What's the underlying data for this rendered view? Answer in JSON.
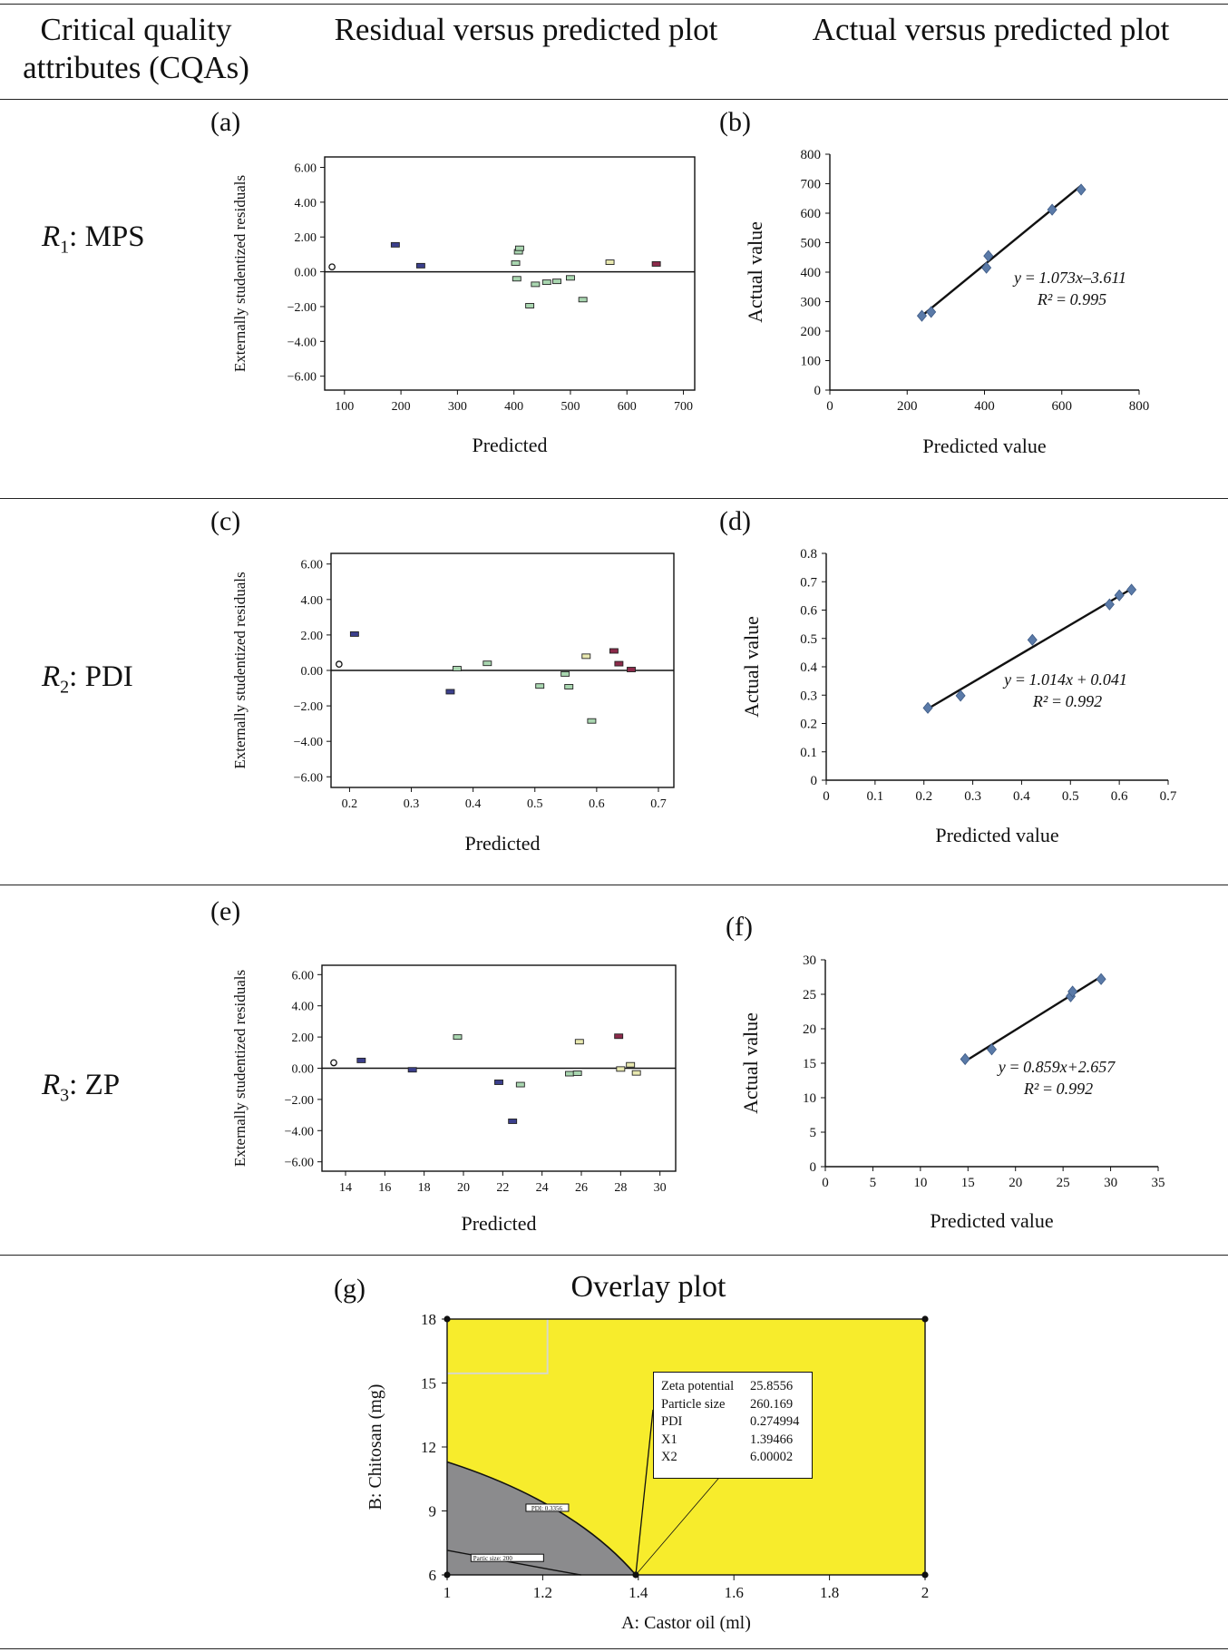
{
  "header": {
    "col1_line1": "Critical quality",
    "col1_line2": "attributes (CQAs)",
    "col2": "Residual versus predicted plot",
    "col3": "Actual versus predicted plot"
  },
  "rows": [
    {
      "label_var": "R",
      "label_sub": "1",
      "label_rest": ": MPS"
    },
    {
      "label_var": "R",
      "label_sub": "2",
      "label_rest": ": PDI"
    },
    {
      "label_var": "R",
      "label_sub": "3",
      "label_rest": ": ZP"
    }
  ],
  "panel_letters": [
    "(a)",
    "(b)",
    "(c)",
    "(d)",
    "(e)",
    "(f)",
    "(g)"
  ],
  "overlay_title": "Overlay plot",
  "chart_data": [
    {
      "id": "a",
      "type": "scatter",
      "title": "",
      "xlabel": "Predicted",
      "ylabel": "Externally studentized residuals",
      "xlim": [
        65,
        720
      ],
      "ylim": [
        -6.8,
        6.6
      ],
      "xticks": [
        100,
        200,
        300,
        400,
        500,
        600,
        700
      ],
      "xtick_labels": [
        "100",
        "200",
        "300",
        "400",
        "500",
        "600",
        "700"
      ],
      "yticks": [
        6,
        4,
        2,
        0,
        -2,
        -4,
        -6
      ],
      "ytick_labels": [
        "6.00",
        "4.00",
        "2.00",
        "0.00",
        "−2.00",
        "−4.00",
        "−6.00"
      ],
      "zero_line": true,
      "points": [
        {
          "x": 78,
          "y": 0.28,
          "c": "o"
        },
        {
          "x": 190,
          "y": 1.55,
          "c": "b"
        },
        {
          "x": 235,
          "y": 0.35,
          "c": "b"
        },
        {
          "x": 403,
          "y": 0.5,
          "c": "g"
        },
        {
          "x": 408,
          "y": 1.15,
          "c": "g"
        },
        {
          "x": 410,
          "y": 1.35,
          "c": "g"
        },
        {
          "x": 405,
          "y": -0.4,
          "c": "g"
        },
        {
          "x": 428,
          "y": -1.95,
          "c": "g"
        },
        {
          "x": 438,
          "y": -0.72,
          "c": "g"
        },
        {
          "x": 458,
          "y": -0.6,
          "c": "g"
        },
        {
          "x": 476,
          "y": -0.55,
          "c": "g"
        },
        {
          "x": 500,
          "y": -0.35,
          "c": "g"
        },
        {
          "x": 522,
          "y": -1.6,
          "c": "g"
        },
        {
          "x": 570,
          "y": 0.55,
          "c": "y"
        },
        {
          "x": 652,
          "y": 0.45,
          "c": "r"
        }
      ]
    },
    {
      "id": "b",
      "type": "scatter",
      "xlabel": "Predicted value",
      "ylabel": "Actual value",
      "xlim": [
        0,
        800
      ],
      "ylim": [
        0,
        800
      ],
      "xticks": [
        0,
        200,
        400,
        600,
        800
      ],
      "xtick_labels": [
        "0",
        "200",
        "400",
        "600",
        "800"
      ],
      "yticks": [
        0,
        100,
        200,
        300,
        400,
        500,
        600,
        700,
        800
      ],
      "ytick_labels": [
        "0",
        "100",
        "200",
        "300",
        "400",
        "500",
        "600",
        "700",
        "800"
      ],
      "points": [
        {
          "x": 238,
          "y": 252
        },
        {
          "x": 262,
          "y": 265
        },
        {
          "x": 405,
          "y": 415
        },
        {
          "x": 410,
          "y": 455
        },
        {
          "x": 575,
          "y": 612
        },
        {
          "x": 650,
          "y": 680
        }
      ],
      "fit_line": {
        "x1": 238,
        "y1": 251.8,
        "x2": 650,
        "y2": 693.8
      },
      "equation": "y = 1.073x–3.611",
      "r2": "R² = 0.995"
    },
    {
      "id": "c",
      "type": "scatter",
      "title": "",
      "xlabel": "Predicted",
      "ylabel": "Externally studentized residuals",
      "xlim": [
        0.17,
        0.725
      ],
      "ylim": [
        -6.6,
        6.6
      ],
      "xticks": [
        0.2,
        0.3,
        0.4,
        0.5,
        0.6,
        0.7
      ],
      "xtick_labels": [
        "0.2",
        "0.3",
        "0.4",
        "0.5",
        "0.6",
        "0.7"
      ],
      "yticks": [
        6,
        4,
        2,
        0,
        -2,
        -4,
        -6
      ],
      "ytick_labels": [
        "6.00",
        "4.00",
        "2.00",
        "0.00",
        "−2.00",
        "−4.00",
        "−6.00"
      ],
      "zero_line": true,
      "points": [
        {
          "x": 0.183,
          "y": 0.35,
          "c": "o"
        },
        {
          "x": 0.208,
          "y": 2.05,
          "c": "b"
        },
        {
          "x": 0.363,
          "y": -1.2,
          "c": "b"
        },
        {
          "x": 0.374,
          "y": 0.1,
          "c": "g"
        },
        {
          "x": 0.423,
          "y": 0.4,
          "c": "g"
        },
        {
          "x": 0.508,
          "y": -0.88,
          "c": "g"
        },
        {
          "x": 0.549,
          "y": -0.2,
          "c": "g"
        },
        {
          "x": 0.555,
          "y": -0.92,
          "c": "g"
        },
        {
          "x": 0.583,
          "y": 0.8,
          "c": "y"
        },
        {
          "x": 0.592,
          "y": -2.85,
          "c": "g"
        },
        {
          "x": 0.628,
          "y": 1.1,
          "c": "r"
        },
        {
          "x": 0.636,
          "y": 0.38,
          "c": "r"
        },
        {
          "x": 0.656,
          "y": 0.05,
          "c": "r"
        }
      ]
    },
    {
      "id": "d",
      "type": "scatter",
      "xlabel": "Predicted value",
      "ylabel": "Actual value",
      "xlim": [
        0,
        0.7
      ],
      "ylim": [
        0,
        0.8
      ],
      "xticks": [
        0,
        0.1,
        0.2,
        0.3,
        0.4,
        0.5,
        0.6,
        0.7
      ],
      "xtick_labels": [
        "0",
        "0.1",
        "0.2",
        "0.3",
        "0.4",
        "0.5",
        "0.6",
        "0.7"
      ],
      "yticks": [
        0,
        0.1,
        0.2,
        0.3,
        0.4,
        0.5,
        0.6,
        0.7,
        0.8
      ],
      "ytick_labels": [
        "0",
        "0.1",
        "0.2",
        "0.3",
        "0.4",
        "0.5",
        "0.6",
        "0.7",
        "0.8"
      ],
      "points": [
        {
          "x": 0.208,
          "y": 0.255
        },
        {
          "x": 0.275,
          "y": 0.298
        },
        {
          "x": 0.422,
          "y": 0.495
        },
        {
          "x": 0.58,
          "y": 0.62
        },
        {
          "x": 0.6,
          "y": 0.652
        },
        {
          "x": 0.625,
          "y": 0.672
        }
      ],
      "fit_line": {
        "x1": 0.208,
        "y1": 0.252,
        "x2": 0.63,
        "y2": 0.68
      },
      "equation": "y = 1.014x + 0.041",
      "r2": "R² = 0.992"
    },
    {
      "id": "e",
      "type": "scatter",
      "title": "",
      "xlabel": "Predicted",
      "ylabel": "Externally studentized residuals",
      "xlim": [
        12.8,
        30.8
      ],
      "ylim": [
        -6.6,
        6.6
      ],
      "xticks": [
        14,
        16,
        18,
        20,
        22,
        24,
        26,
        28,
        30
      ],
      "xtick_labels": [
        "14",
        "16",
        "18",
        "20",
        "22",
        "24",
        "26",
        "28",
        "30"
      ],
      "yticks": [
        6,
        4,
        2,
        0,
        -2,
        -4,
        -6
      ],
      "ytick_labels": [
        "6.00",
        "4.00",
        "2.00",
        "0.00",
        "−2.00",
        "−4.00",
        "−6.00"
      ],
      "zero_line": true,
      "points": [
        {
          "x": 13.4,
          "y": 0.35,
          "c": "o"
        },
        {
          "x": 14.8,
          "y": 0.5,
          "c": "b"
        },
        {
          "x": 17.4,
          "y": -0.1,
          "c": "b"
        },
        {
          "x": 19.7,
          "y": 2.0,
          "c": "g"
        },
        {
          "x": 21.8,
          "y": -0.9,
          "c": "b"
        },
        {
          "x": 22.5,
          "y": -3.4,
          "c": "b"
        },
        {
          "x": 22.9,
          "y": -1.05,
          "c": "g"
        },
        {
          "x": 25.4,
          "y": -0.35,
          "c": "g"
        },
        {
          "x": 25.8,
          "y": -0.32,
          "c": "g"
        },
        {
          "x": 25.9,
          "y": 1.7,
          "c": "y"
        },
        {
          "x": 27.9,
          "y": 2.05,
          "c": "r"
        },
        {
          "x": 28.0,
          "y": -0.05,
          "c": "y"
        },
        {
          "x": 28.5,
          "y": 0.22,
          "c": "y"
        },
        {
          "x": 28.8,
          "y": -0.3,
          "c": "y"
        }
      ]
    },
    {
      "id": "f",
      "type": "scatter",
      "xlabel": "Predicted value",
      "ylabel": "Actual value",
      "xlim": [
        0,
        35
      ],
      "ylim": [
        0,
        30
      ],
      "xticks": [
        0,
        5,
        10,
        15,
        20,
        25,
        30,
        35
      ],
      "xtick_labels": [
        "0",
        "5",
        "10",
        "15",
        "20",
        "25",
        "30",
        "35"
      ],
      "yticks": [
        0,
        5,
        10,
        15,
        20,
        25,
        30
      ],
      "ytick_labels": [
        "0",
        "5",
        "10",
        "15",
        "20",
        "25",
        "30"
      ],
      "points": [
        {
          "x": 14.7,
          "y": 15.6
        },
        {
          "x": 17.5,
          "y": 17.0
        },
        {
          "x": 25.8,
          "y": 24.7
        },
        {
          "x": 26.0,
          "y": 25.4
        },
        {
          "x": 29.0,
          "y": 27.2
        }
      ],
      "fit_line": {
        "x1": 14.7,
        "y1": 15.28,
        "x2": 29.0,
        "y2": 27.57
      },
      "equation": "y = 0.859x+2.657",
      "r2": "R² = 0.992"
    },
    {
      "id": "g",
      "type": "contour",
      "title": "Overlay plot",
      "xlabel": "A: Castor oil (ml)",
      "ylabel": "B: Chitosan (mg)",
      "xlim": [
        1,
        2
      ],
      "ylim": [
        6,
        18
      ],
      "xticks": [
        1,
        1.2,
        1.4,
        1.6,
        1.8,
        2
      ],
      "xtick_labels": [
        "1",
        "1.2",
        "1.4",
        "1.6",
        "1.8",
        "2"
      ],
      "yticks": [
        6,
        9,
        12,
        15,
        18
      ],
      "ytick_labels": [
        "6",
        "9",
        "12",
        "15",
        "18"
      ],
      "regions": [
        {
          "name": "design space",
          "color": "#f7ec2c"
        },
        {
          "name": "excluded",
          "color": "#8b8b8d"
        }
      ],
      "contour_labels": [
        "PDI: 0.3356",
        "Partic size: 200"
      ],
      "flag": {
        "x": 1.39466,
        "y": 6.00002,
        "rows": [
          {
            "name": "Zeta potential",
            "value": "25.8556"
          },
          {
            "name": "Particle size",
            "value": "260.169"
          },
          {
            "name": "PDI",
            "value": "0.274994"
          },
          {
            "name": "X1",
            "value": "1.39466"
          },
          {
            "name": "X2",
            "value": "6.00002"
          }
        ]
      }
    }
  ]
}
